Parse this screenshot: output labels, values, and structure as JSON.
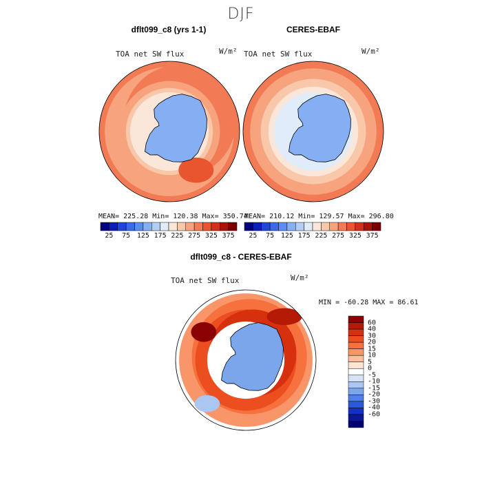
{
  "figure": {
    "season_title": "DJF"
  },
  "panels": [
    {
      "title": "dflt099_c8 (yrs 1-1)",
      "variable": "TOA net SW flux",
      "units": "W/m²",
      "stats": {
        "mean": "225.28",
        "min": "120.38",
        "max": "350.74"
      },
      "stats_text": "MEAN= 225.28  Min= 120.38  Max= 350.74"
    },
    {
      "title": "CERES-EBAF",
      "variable": "TOA net SW flux",
      "units": "W/m²",
      "stats": {
        "mean": "210.12",
        "min": "129.57",
        "max": "296.80"
      },
      "stats_text": "MEAN= 210.12  Min= 129.57  Max= 296.80"
    }
  ],
  "diff_panel": {
    "title": "dflt099_c8 - CERES-EBAF",
    "variable": "TOA net SW flux",
    "units": "W/m²",
    "stats": {
      "min": "-60.28",
      "max": "86.61"
    },
    "stats_text": "MIN = -60.28 MAX =  86.61"
  },
  "chart_data": [
    {
      "type": "heatmap",
      "title": "dflt099_c8 (yrs 1-1)",
      "projection": "south polar stereographic",
      "colorbar": {
        "orientation": "horizontal",
        "levels": [
          0,
          25,
          50,
          75,
          100,
          125,
          150,
          175,
          200,
          225,
          250,
          275,
          300,
          325,
          350,
          375
        ],
        "tick_labels": [
          "25",
          "75",
          "125",
          "175",
          "225",
          "275",
          "325",
          "375"
        ],
        "colors": [
          "#00007a",
          "#0c1db8",
          "#1f46d6",
          "#3a6ae8",
          "#5b8def",
          "#86aef2",
          "#b4cdf5",
          "#e0ecfa",
          "#fbe7d9",
          "#f9c7aa",
          "#f7a37d",
          "#f27b55",
          "#e8552f",
          "#d1311a",
          "#a8130a",
          "#7a0000"
        ]
      },
      "mean": 225.28,
      "min": 120.38,
      "max": 350.74
    },
    {
      "type": "heatmap",
      "title": "CERES-EBAF",
      "projection": "south polar stereographic",
      "colorbar": {
        "orientation": "horizontal",
        "levels": [
          0,
          25,
          50,
          75,
          100,
          125,
          150,
          175,
          200,
          225,
          250,
          275,
          300,
          325,
          350,
          375
        ],
        "tick_labels": [
          "25",
          "75",
          "125",
          "175",
          "225",
          "275",
          "325",
          "375"
        ],
        "colors": [
          "#00007a",
          "#0c1db8",
          "#1f46d6",
          "#3a6ae8",
          "#5b8def",
          "#86aef2",
          "#b4cdf5",
          "#e0ecfa",
          "#fbe7d9",
          "#f9c7aa",
          "#f7a37d",
          "#f27b55",
          "#e8552f",
          "#d1311a",
          "#a8130a",
          "#7a0000"
        ]
      },
      "mean": 210.12,
      "min": 129.57,
      "max": 296.8
    },
    {
      "type": "heatmap",
      "title": "dflt099_c8 - CERES-EBAF",
      "projection": "south polar stereographic",
      "colorbar": {
        "orientation": "vertical",
        "tick_labels": [
          "60",
          "40",
          "30",
          "20",
          "15",
          "10",
          "5",
          "0",
          "-5",
          "-10",
          "-15",
          "-20",
          "-30",
          "-40",
          "-60"
        ],
        "colors": [
          "#8b0000",
          "#b51a06",
          "#d6300e",
          "#ec4e1f",
          "#f6713e",
          "#f99669",
          "#fbbf9e",
          "#fde4d3",
          "#ffffff",
          "#d5e3f7",
          "#aac6f1",
          "#7ba6ec",
          "#5181e6",
          "#2c58db",
          "#1531c1",
          "#0a1896",
          "#000070"
        ]
      },
      "min": -60.28,
      "max": 86.61
    }
  ]
}
